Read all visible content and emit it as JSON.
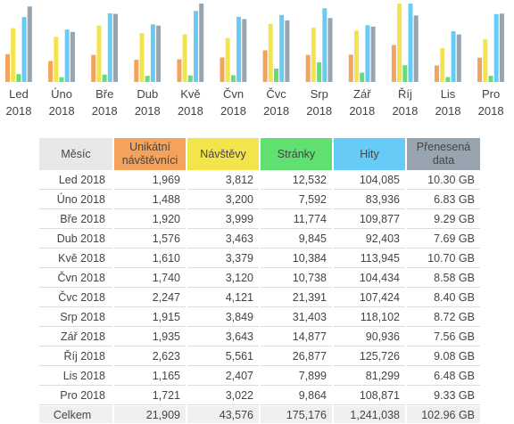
{
  "colors": {
    "unique": "#f4a35e",
    "visits": "#f4e44c",
    "pages": "#5fe070",
    "hits": "#66ccf7",
    "bandwidth": "#98a4b0"
  },
  "chart_data": {
    "type": "bar",
    "categories": [
      "Led 2018",
      "Úno 2018",
      "Bře 2018",
      "Dub 2018",
      "Kvě 2018",
      "Čvn 2018",
      "Čvc 2018",
      "Srp 2018",
      "Zář 2018",
      "Říj 2018",
      "Lis 2018",
      "Pro 2018"
    ],
    "series": [
      {
        "name": "Unikátní návštěvníci",
        "values": [
          1969,
          1488,
          1920,
          1576,
          1610,
          1740,
          2247,
          1915,
          1935,
          2623,
          1165,
          1721
        ]
      },
      {
        "name": "Návštěvy",
        "values": [
          3812,
          3200,
          3999,
          3463,
          3379,
          3120,
          4121,
          3849,
          3643,
          5561,
          2407,
          3022
        ]
      },
      {
        "name": "Stránky",
        "values": [
          12532,
          7592,
          11774,
          9845,
          10384,
          10738,
          21391,
          31403,
          14877,
          26877,
          7899,
          9864
        ]
      },
      {
        "name": "Hity",
        "values": [
          104085,
          83936,
          109877,
          92403,
          113945,
          104434,
          107424,
          118102,
          90936,
          125726,
          81299,
          108871
        ]
      },
      {
        "name": "Přenesená data",
        "values": [
          10.3,
          6.83,
          9.29,
          7.69,
          10.7,
          8.58,
          8.4,
          8.72,
          7.56,
          9.08,
          6.48,
          9.33
        ]
      }
    ]
  },
  "table": {
    "headers": {
      "month": "Měsíc",
      "unique": "Unikátní návštěvníci",
      "visits": "Návštěvy",
      "pages": "Stránky",
      "hits": "Hity",
      "bandwidth": "Přenesená data"
    },
    "rows": [
      {
        "month": "Led 2018",
        "unique": "1,969",
        "visits": "3,812",
        "pages": "12,532",
        "hits": "104,085",
        "bandwidth": "10.30 GB"
      },
      {
        "month": "Úno 2018",
        "unique": "1,488",
        "visits": "3,200",
        "pages": "7,592",
        "hits": "83,936",
        "bandwidth": "6.83 GB"
      },
      {
        "month": "Bře 2018",
        "unique": "1,920",
        "visits": "3,999",
        "pages": "11,774",
        "hits": "109,877",
        "bandwidth": "9.29 GB"
      },
      {
        "month": "Dub 2018",
        "unique": "1,576",
        "visits": "3,463",
        "pages": "9,845",
        "hits": "92,403",
        "bandwidth": "7.69 GB"
      },
      {
        "month": "Kvě 2018",
        "unique": "1,610",
        "visits": "3,379",
        "pages": "10,384",
        "hits": "113,945",
        "bandwidth": "10.70 GB"
      },
      {
        "month": "Čvn 2018",
        "unique": "1,740",
        "visits": "3,120",
        "pages": "10,738",
        "hits": "104,434",
        "bandwidth": "8.58 GB"
      },
      {
        "month": "Čvc 2018",
        "unique": "2,247",
        "visits": "4,121",
        "pages": "21,391",
        "hits": "107,424",
        "bandwidth": "8.40 GB"
      },
      {
        "month": "Srp 2018",
        "unique": "1,915",
        "visits": "3,849",
        "pages": "31,403",
        "hits": "118,102",
        "bandwidth": "8.72 GB"
      },
      {
        "month": "Zář 2018",
        "unique": "1,935",
        "visits": "3,643",
        "pages": "14,877",
        "hits": "90,936",
        "bandwidth": "7.56 GB"
      },
      {
        "month": "Říj 2018",
        "unique": "2,623",
        "visits": "5,561",
        "pages": "26,877",
        "hits": "125,726",
        "bandwidth": "9.08 GB"
      },
      {
        "month": "Lis 2018",
        "unique": "1,165",
        "visits": "2,407",
        "pages": "7,899",
        "hits": "81,299",
        "bandwidth": "6.48 GB"
      },
      {
        "month": "Pro 2018",
        "unique": "1,721",
        "visits": "3,022",
        "pages": "9,864",
        "hits": "108,871",
        "bandwidth": "9.33 GB"
      }
    ],
    "total": {
      "month": "Celkem",
      "unique": "21,909",
      "visits": "43,576",
      "pages": "175,176",
      "hits": "1,241,038",
      "bandwidth": "102.96 GB"
    }
  }
}
